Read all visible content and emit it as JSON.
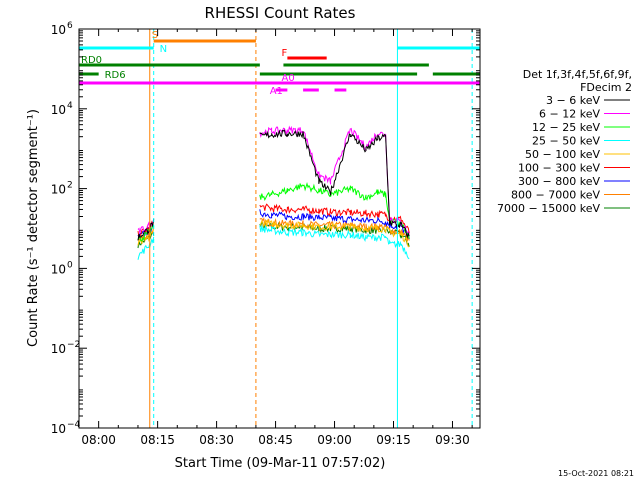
{
  "chart_data": {
    "type": "line",
    "title": "RHESSI Count Rates",
    "xlabel": "Start Time (09-Mar-11 07:57:02)",
    "ylabel": "Count Rate (s⁻¹ detector segment⁻¹)",
    "yscale": "log",
    "ylim": [
      0.0001,
      1000000
    ],
    "xlim": [
      "07:55",
      "09:37"
    ],
    "x_ticks": [
      "08:00",
      "08:15",
      "08:30",
      "08:45",
      "09:00",
      "09:15",
      "09:30"
    ],
    "y_ticks": [
      {
        "value": 0.0001,
        "label": "10",
        "exp": "−4"
      },
      {
        "value": 0.01,
        "label": "10",
        "exp": "−2"
      },
      {
        "value": 1,
        "label": "10",
        "exp": "0"
      },
      {
        "value": 100,
        "label": "10",
        "exp": "2"
      },
      {
        "value": 10000,
        "label": "10",
        "exp": "4"
      },
      {
        "value": 1000000,
        "label": "10",
        "exp": "6"
      }
    ],
    "legend_placement": "right",
    "legend_title": [
      "Det 1f,3f,4f,5f,6f,9f,",
      "FDecim 2"
    ],
    "series": [
      {
        "name": "3 − 6 keV",
        "color": "#000000",
        "x": [
          "08:10",
          "08:13",
          "08:14",
          "08:41",
          "08:44",
          "08:48",
          "08:52",
          "08:56",
          "08:59",
          "09:04",
          "09:08",
          "09:11",
          "09:13",
          "09:14",
          "09:17",
          "09:19"
        ],
        "values": [
          6,
          10,
          15,
          2000,
          2300,
          2400,
          2400,
          150,
          80,
          2400,
          900,
          1800,
          2000,
          14,
          12,
          6
        ]
      },
      {
        "name": "6 − 12 keV",
        "color": "#ff00ff",
        "x": [
          "08:10",
          "08:13",
          "08:14",
          "08:41",
          "08:44",
          "08:48",
          "08:52",
          "08:56",
          "08:59",
          "09:04",
          "09:08",
          "09:11",
          "09:13",
          "09:14",
          "09:17",
          "09:19"
        ],
        "values": [
          8,
          12,
          18,
          2500,
          2800,
          2900,
          2900,
          220,
          150,
          3000,
          1100,
          2500,
          2200,
          18,
          14,
          7
        ]
      },
      {
        "name": "12 − 25 keV",
        "color": "#00ff00",
        "x": [
          "08:10",
          "08:13",
          "08:14",
          "08:41",
          "08:44",
          "08:48",
          "08:52",
          "08:56",
          "08:59",
          "09:04",
          "09:08",
          "09:11",
          "09:13",
          "09:14",
          "09:17",
          "09:19"
        ],
        "values": [
          5,
          8,
          12,
          60,
          70,
          90,
          120,
          90,
          70,
          100,
          60,
          80,
          70,
          16,
          13,
          6
        ]
      },
      {
        "name": "25 − 50 keV",
        "color": "#00ffff",
        "x": [
          "08:10",
          "08:13",
          "08:14",
          "08:41",
          "08:44",
          "08:48",
          "08:52",
          "08:56",
          "08:59",
          "09:04",
          "09:08",
          "09:11",
          "09:13",
          "09:14",
          "09:17",
          "09:19"
        ],
        "values": [
          2,
          4,
          6,
          10,
          9,
          8,
          8,
          7,
          7,
          7,
          6,
          6,
          6,
          4,
          4,
          2
        ]
      },
      {
        "name": "50 − 100 keV",
        "color": "#ffc000",
        "x": [
          "08:10",
          "08:13",
          "08:14",
          "08:41",
          "08:44",
          "08:48",
          "08:52",
          "08:56",
          "08:59",
          "09:04",
          "09:08",
          "09:11",
          "09:13",
          "09:14",
          "09:17",
          "09:19"
        ],
        "values": [
          4,
          6,
          9,
          14,
          13,
          12,
          12,
          11,
          11,
          11,
          10,
          10,
          10,
          8,
          7,
          4
        ]
      },
      {
        "name": "100 − 300 keV",
        "color": "#ff0000",
        "x": [
          "08:10",
          "08:13",
          "08:14",
          "08:41",
          "08:44",
          "08:48",
          "08:52",
          "08:56",
          "08:59",
          "09:04",
          "09:08",
          "09:11",
          "09:13",
          "09:14",
          "09:17",
          "09:19"
        ],
        "values": [
          7,
          10,
          14,
          35,
          32,
          30,
          30,
          28,
          26,
          25,
          24,
          23,
          22,
          18,
          17,
          8
        ]
      },
      {
        "name": "300 − 800 keV",
        "color": "#0000ff",
        "x": [
          "08:10",
          "08:13",
          "08:14",
          "08:41",
          "08:44",
          "08:48",
          "08:52",
          "08:56",
          "08:59",
          "09:04",
          "09:08",
          "09:11",
          "09:13",
          "09:14",
          "09:17",
          "09:19"
        ],
        "values": [
          6,
          9,
          13,
          25,
          22,
          20,
          20,
          19,
          18,
          17,
          16,
          16,
          15,
          12,
          11,
          6
        ]
      },
      {
        "name": "800 − 7000 keV",
        "color": "#ff8000",
        "x": [
          "08:10",
          "08:13",
          "08:14",
          "08:41",
          "08:44",
          "08:48",
          "08:52",
          "08:56",
          "08:59",
          "09:04",
          "09:08",
          "09:11",
          "09:13",
          "09:14",
          "09:17",
          "09:19"
        ],
        "values": [
          5,
          7,
          10,
          15,
          14,
          13,
          13,
          12,
          12,
          12,
          11,
          11,
          11,
          9,
          8,
          5
        ]
      },
      {
        "name": "7000 − 15000 keV",
        "color": "#008000",
        "x": [
          "08:10",
          "08:13",
          "08:14",
          "08:41",
          "08:44",
          "08:48",
          "08:52",
          "08:56",
          "08:59",
          "09:04",
          "09:08",
          "09:11",
          "09:13",
          "09:14",
          "09:17",
          "09:19"
        ],
        "values": [
          4,
          6,
          8,
          12,
          11,
          11,
          11,
          10,
          10,
          10,
          9,
          9,
          9,
          8,
          7,
          4
        ]
      }
    ],
    "state_bars": [
      {
        "label": "S",
        "color": "#ff8000",
        "segments": [
          [
            "08:14",
            "08:40"
          ]
        ],
        "label_at": "08:13"
      },
      {
        "label": "N",
        "color": "#00ffff",
        "segments": [
          [
            "07:55",
            "08:14"
          ],
          [
            "09:16",
            "09:37"
          ]
        ],
        "label_at": "08:15"
      },
      {
        "label": "F",
        "color": "#ff0000",
        "segments": [
          [
            "08:48",
            "08:58"
          ]
        ],
        "label_at": "08:46"
      },
      {
        "label": "RD0",
        "color": "#008000",
        "segments": [
          [
            "07:55",
            "08:41"
          ],
          [
            "08:47",
            "09:24"
          ]
        ],
        "label_at": "07:55"
      },
      {
        "label": "RD6",
        "color": "#008000",
        "segments": [
          [
            "07:55",
            "08:00"
          ],
          [
            "08:41",
            "09:21"
          ],
          [
            "09:25",
            "09:37"
          ]
        ],
        "label_at": "08:01"
      },
      {
        "label": "A0",
        "color": "#ff00ff",
        "segments": [
          [
            "07:55",
            "09:37"
          ]
        ],
        "label_at": "08:46"
      },
      {
        "label": "A1",
        "color": "#ff00ff",
        "segments": [
          [
            "08:45",
            "08:48"
          ],
          [
            "08:52",
            "08:56"
          ],
          [
            "09:00",
            "09:03"
          ]
        ],
        "label_at": "08:43"
      }
    ],
    "vertical_lines": [
      {
        "x": "07:55",
        "color": "#00ffff",
        "style": "solid"
      },
      {
        "x": "08:13",
        "color": "#ff8000",
        "style": "solid"
      },
      {
        "x": "08:14",
        "color": "#00ffff",
        "style": "dashed"
      },
      {
        "x": "08:40",
        "color": "#ff8000",
        "style": "dashed"
      },
      {
        "x": "09:16",
        "color": "#00ffff",
        "style": "solid"
      },
      {
        "x": "09:35",
        "color": "#00ffff",
        "style": "dashed"
      }
    ]
  },
  "footer": {
    "timestamp": "15-Oct-2021 08:21"
  },
  "colors": {
    "axis": "#000000",
    "background": "#ffffff"
  }
}
